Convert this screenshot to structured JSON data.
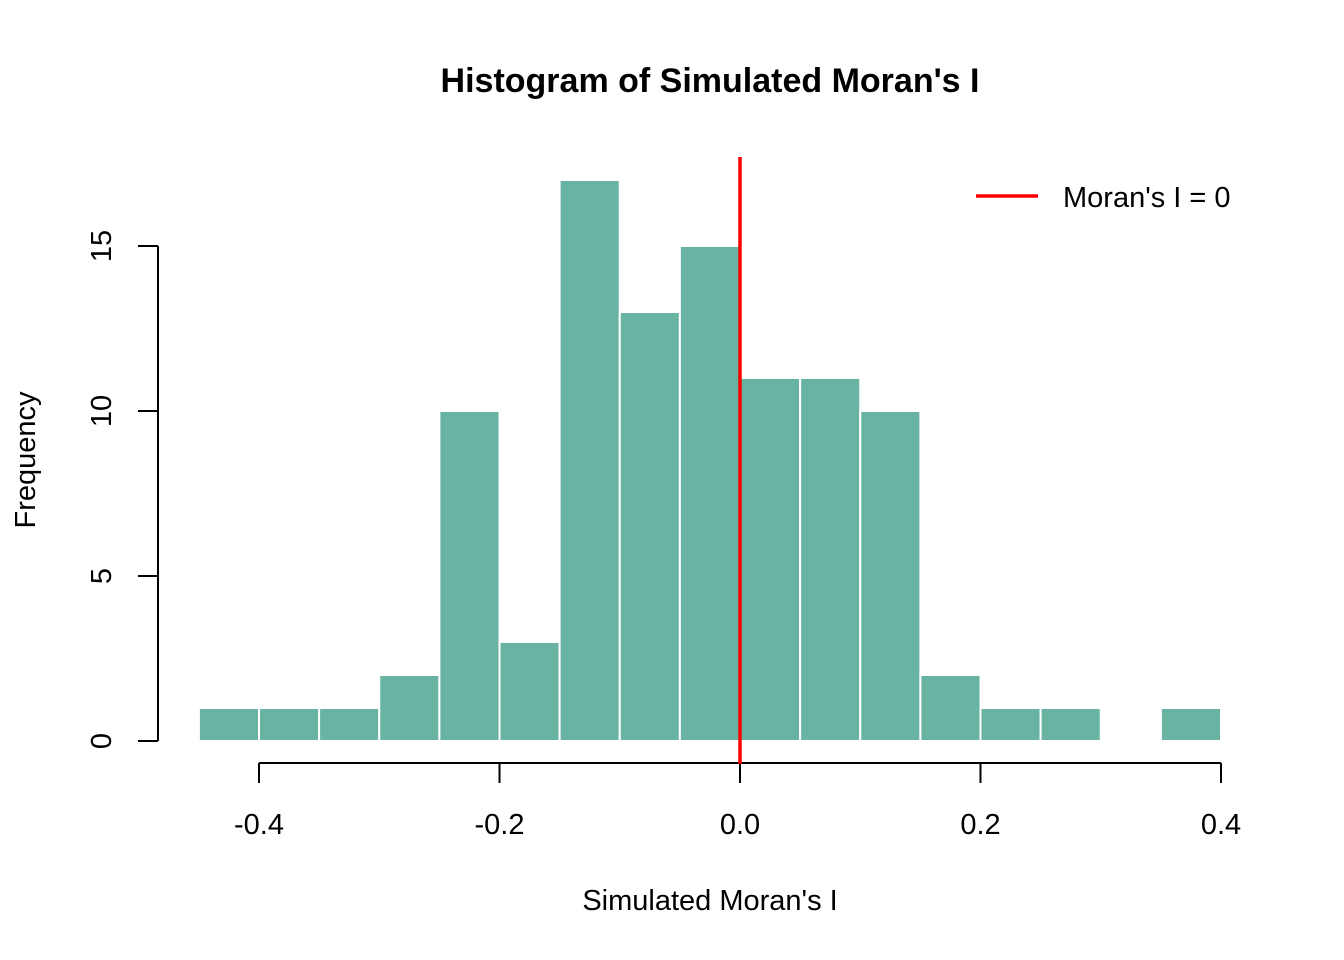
{
  "chart_data": {
    "type": "bar",
    "title": "Histogram of Simulated Moran's I",
    "xlabel": "Simulated Moran's I",
    "ylabel": "Frequency",
    "xlim": [
      -0.45,
      0.4
    ],
    "ylim": [
      0,
      17
    ],
    "x_ticks": [
      -0.4,
      -0.2,
      0.0,
      0.2,
      0.4
    ],
    "x_tick_labels": [
      "-0.4",
      "-0.2",
      "0.0",
      "0.2",
      "0.4"
    ],
    "y_ticks": [
      0,
      5,
      10,
      15
    ],
    "y_tick_labels": [
      "0",
      "5",
      "10",
      "15"
    ],
    "bins": [
      {
        "x0": -0.45,
        "x1": -0.4,
        "count": 1
      },
      {
        "x0": -0.4,
        "x1": -0.35,
        "count": 1
      },
      {
        "x0": -0.35,
        "x1": -0.3,
        "count": 1
      },
      {
        "x0": -0.3,
        "x1": -0.25,
        "count": 2
      },
      {
        "x0": -0.25,
        "x1": -0.2,
        "count": 10
      },
      {
        "x0": -0.2,
        "x1": -0.15,
        "count": 3
      },
      {
        "x0": -0.15,
        "x1": -0.1,
        "count": 17
      },
      {
        "x0": -0.1,
        "x1": -0.05,
        "count": 13
      },
      {
        "x0": -0.05,
        "x1": 0.0,
        "count": 15
      },
      {
        "x0": 0.0,
        "x1": 0.05,
        "count": 11
      },
      {
        "x0": 0.05,
        "x1": 0.1,
        "count": 11
      },
      {
        "x0": 0.1,
        "x1": 0.15,
        "count": 10
      },
      {
        "x0": 0.15,
        "x1": 0.2,
        "count": 2
      },
      {
        "x0": 0.2,
        "x1": 0.25,
        "count": 1
      },
      {
        "x0": 0.25,
        "x1": 0.3,
        "count": 1
      },
      {
        "x0": 0.3,
        "x1": 0.35,
        "count": 0
      },
      {
        "x0": 0.35,
        "x1": 0.4,
        "count": 1
      }
    ],
    "reference_line": {
      "x": 0,
      "label": "Moran's I = 0",
      "color": "#ff0000"
    },
    "bar_color": "#69b3a2",
    "bar_border_color": "#ffffff",
    "legend_position": "top-right",
    "grid": false
  }
}
